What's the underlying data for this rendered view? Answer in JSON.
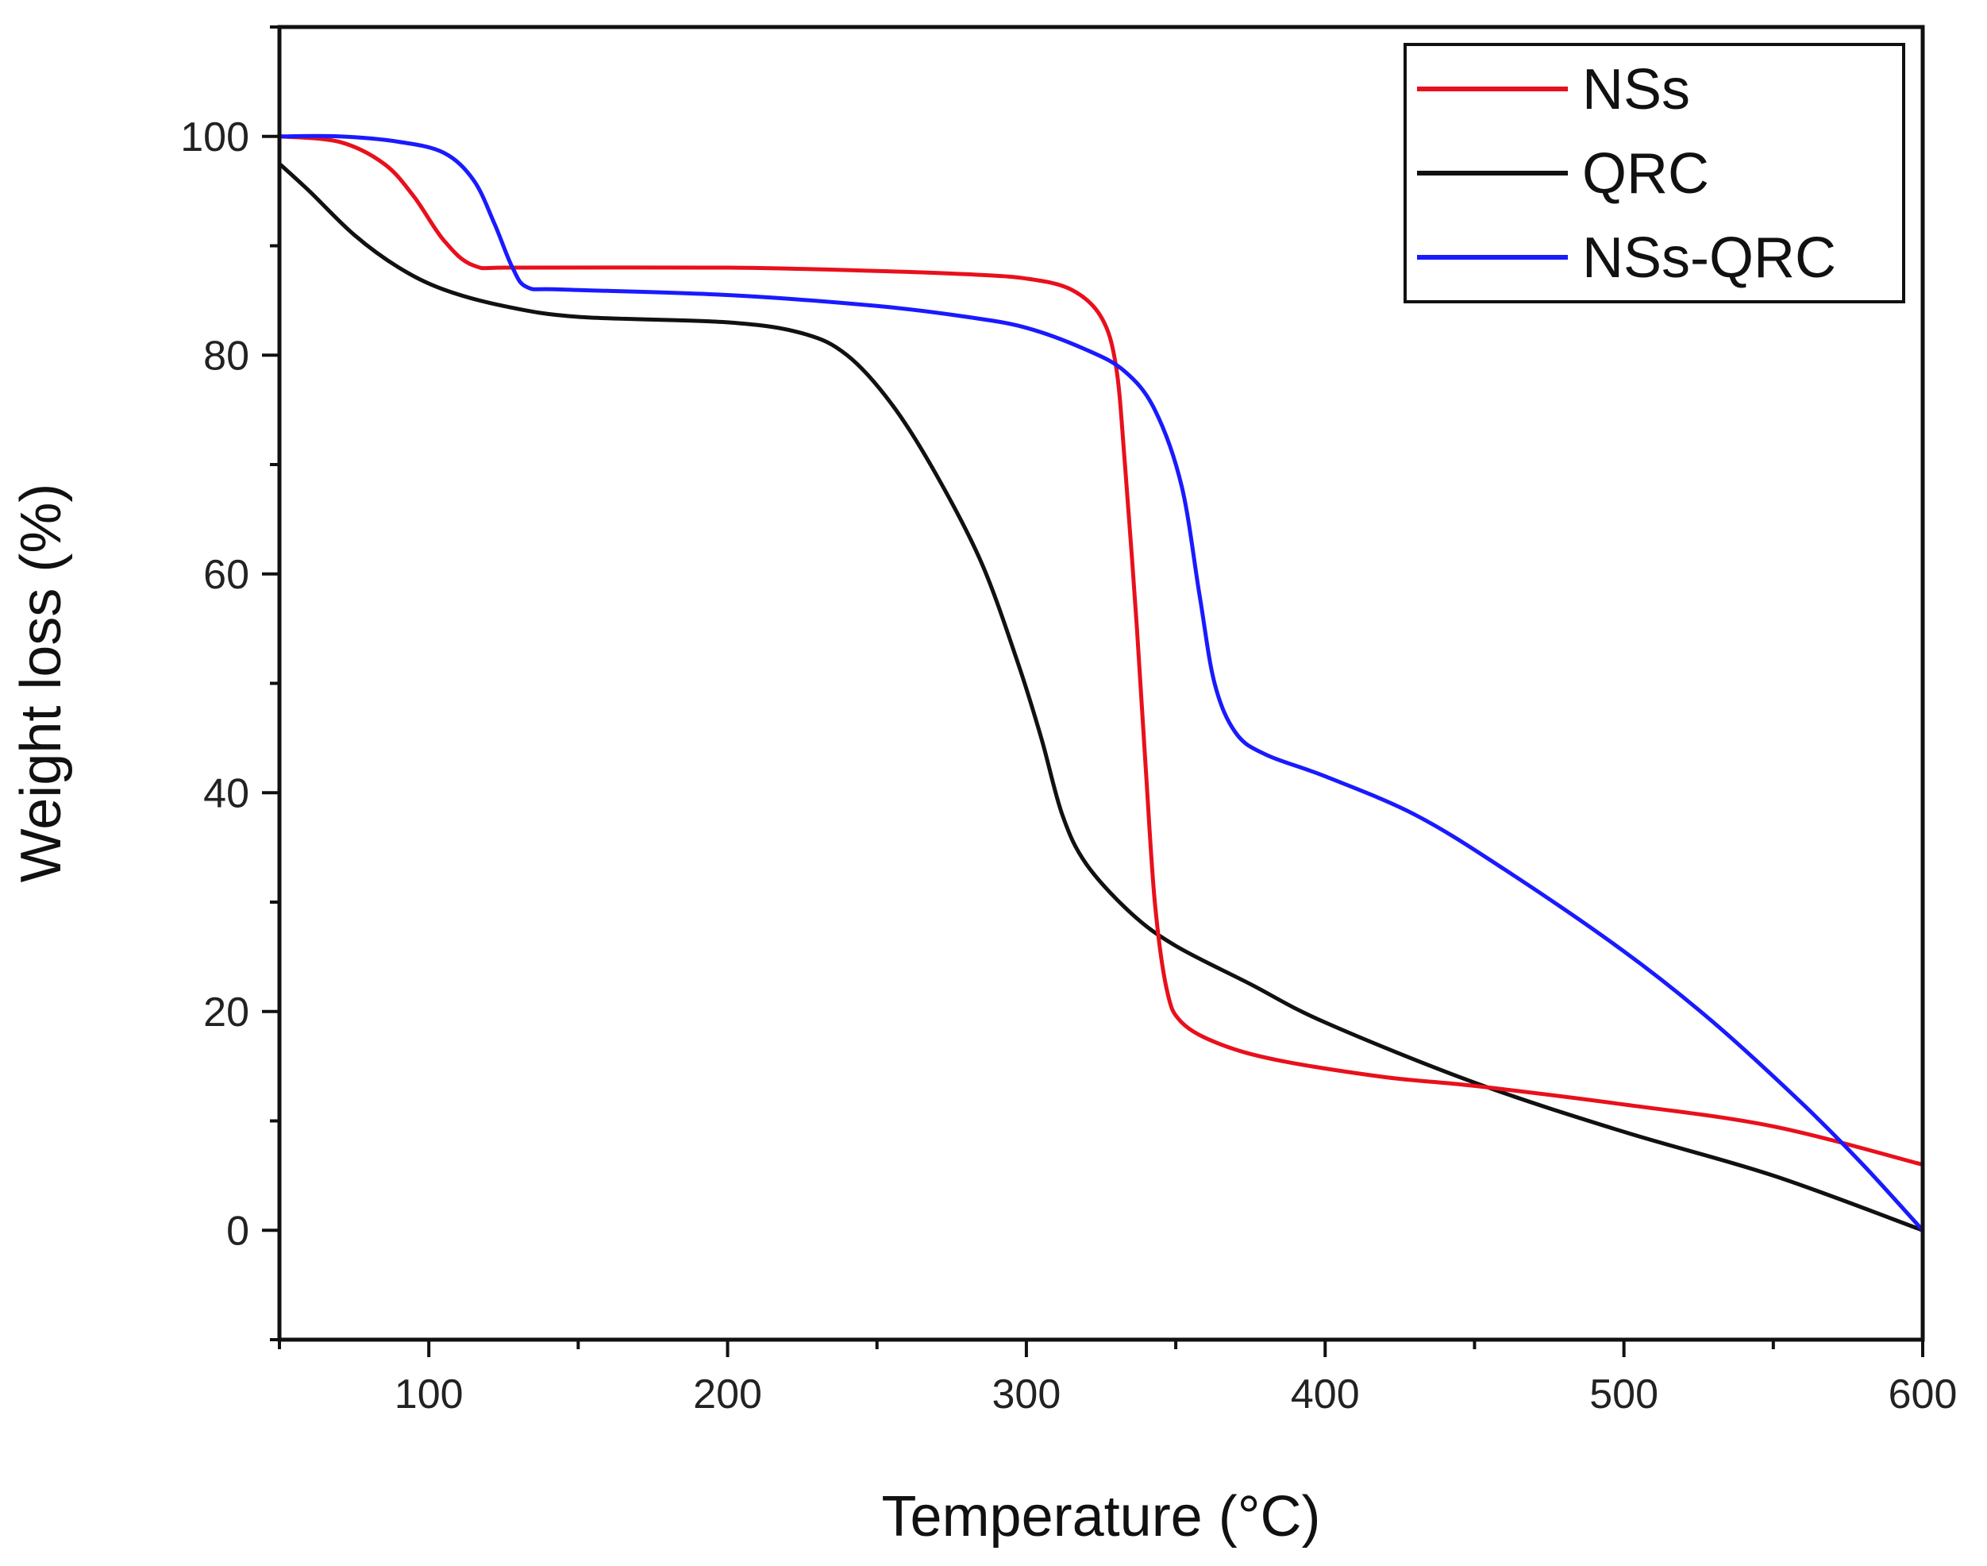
{
  "chart_data": {
    "type": "line",
    "title": "",
    "xlabel": "Temperature (°C)",
    "ylabel": "Weight loss (%)",
    "xlim": [
      50,
      600
    ],
    "ylim": [
      -10,
      110
    ],
    "xticks": [
      100,
      200,
      300,
      400,
      500,
      600
    ],
    "yticks": [
      0,
      20,
      40,
      60,
      80,
      100
    ],
    "legend_position": "top-right",
    "series": [
      {
        "name": "NSs",
        "color": "#e8101c",
        "points": [
          [
            50,
            100
          ],
          [
            70,
            99.5
          ],
          [
            85,
            97.5
          ],
          [
            95,
            94.5
          ],
          [
            105,
            90.5
          ],
          [
            115,
            88.2
          ],
          [
            130,
            88
          ],
          [
            200,
            88
          ],
          [
            250,
            87.7
          ],
          [
            280,
            87.4
          ],
          [
            300,
            87
          ],
          [
            315,
            86
          ],
          [
            325,
            83.5
          ],
          [
            330,
            79
          ],
          [
            333,
            70
          ],
          [
            337,
            55
          ],
          [
            340,
            42
          ],
          [
            343,
            30
          ],
          [
            347,
            22
          ],
          [
            352,
            19
          ],
          [
            365,
            17
          ],
          [
            385,
            15.5
          ],
          [
            420,
            14
          ],
          [
            450,
            13.2
          ],
          [
            500,
            11.5
          ],
          [
            550,
            9.5
          ],
          [
            600,
            6
          ]
        ]
      },
      {
        "name": "QRC",
        "color": "#111111",
        "points": [
          [
            50,
            97.5
          ],
          [
            60,
            95
          ],
          [
            75,
            91
          ],
          [
            90,
            88
          ],
          [
            105,
            86
          ],
          [
            125,
            84.5
          ],
          [
            150,
            83.5
          ],
          [
            200,
            83
          ],
          [
            225,
            82
          ],
          [
            240,
            80
          ],
          [
            255,
            75.5
          ],
          [
            270,
            69
          ],
          [
            285,
            61
          ],
          [
            297,
            52
          ],
          [
            305,
            45
          ],
          [
            312,
            38
          ],
          [
            320,
            33.5
          ],
          [
            335,
            29
          ],
          [
            350,
            26
          ],
          [
            375,
            22.5
          ],
          [
            400,
            19
          ],
          [
            450,
            13.5
          ],
          [
            500,
            9
          ],
          [
            550,
            5
          ],
          [
            600,
            0
          ]
        ]
      },
      {
        "name": "NSs-QRC",
        "color": "#1a1aff",
        "points": [
          [
            50,
            100
          ],
          [
            70,
            100
          ],
          [
            90,
            99.5
          ],
          [
            105,
            98.5
          ],
          [
            115,
            96
          ],
          [
            122,
            92
          ],
          [
            128,
            88
          ],
          [
            133,
            86.2
          ],
          [
            145,
            86
          ],
          [
            200,
            85.5
          ],
          [
            250,
            84.5
          ],
          [
            280,
            83.5
          ],
          [
            300,
            82.5
          ],
          [
            320,
            80.5
          ],
          [
            333,
            78.5
          ],
          [
            343,
            75
          ],
          [
            352,
            68
          ],
          [
            358,
            58
          ],
          [
            363,
            50
          ],
          [
            370,
            45.5
          ],
          [
            380,
            43.5
          ],
          [
            400,
            41.5
          ],
          [
            430,
            38
          ],
          [
            460,
            33
          ],
          [
            500,
            25.5
          ],
          [
            530,
            19
          ],
          [
            560,
            11.5
          ],
          [
            580,
            6
          ],
          [
            600,
            0
          ]
        ]
      }
    ]
  }
}
